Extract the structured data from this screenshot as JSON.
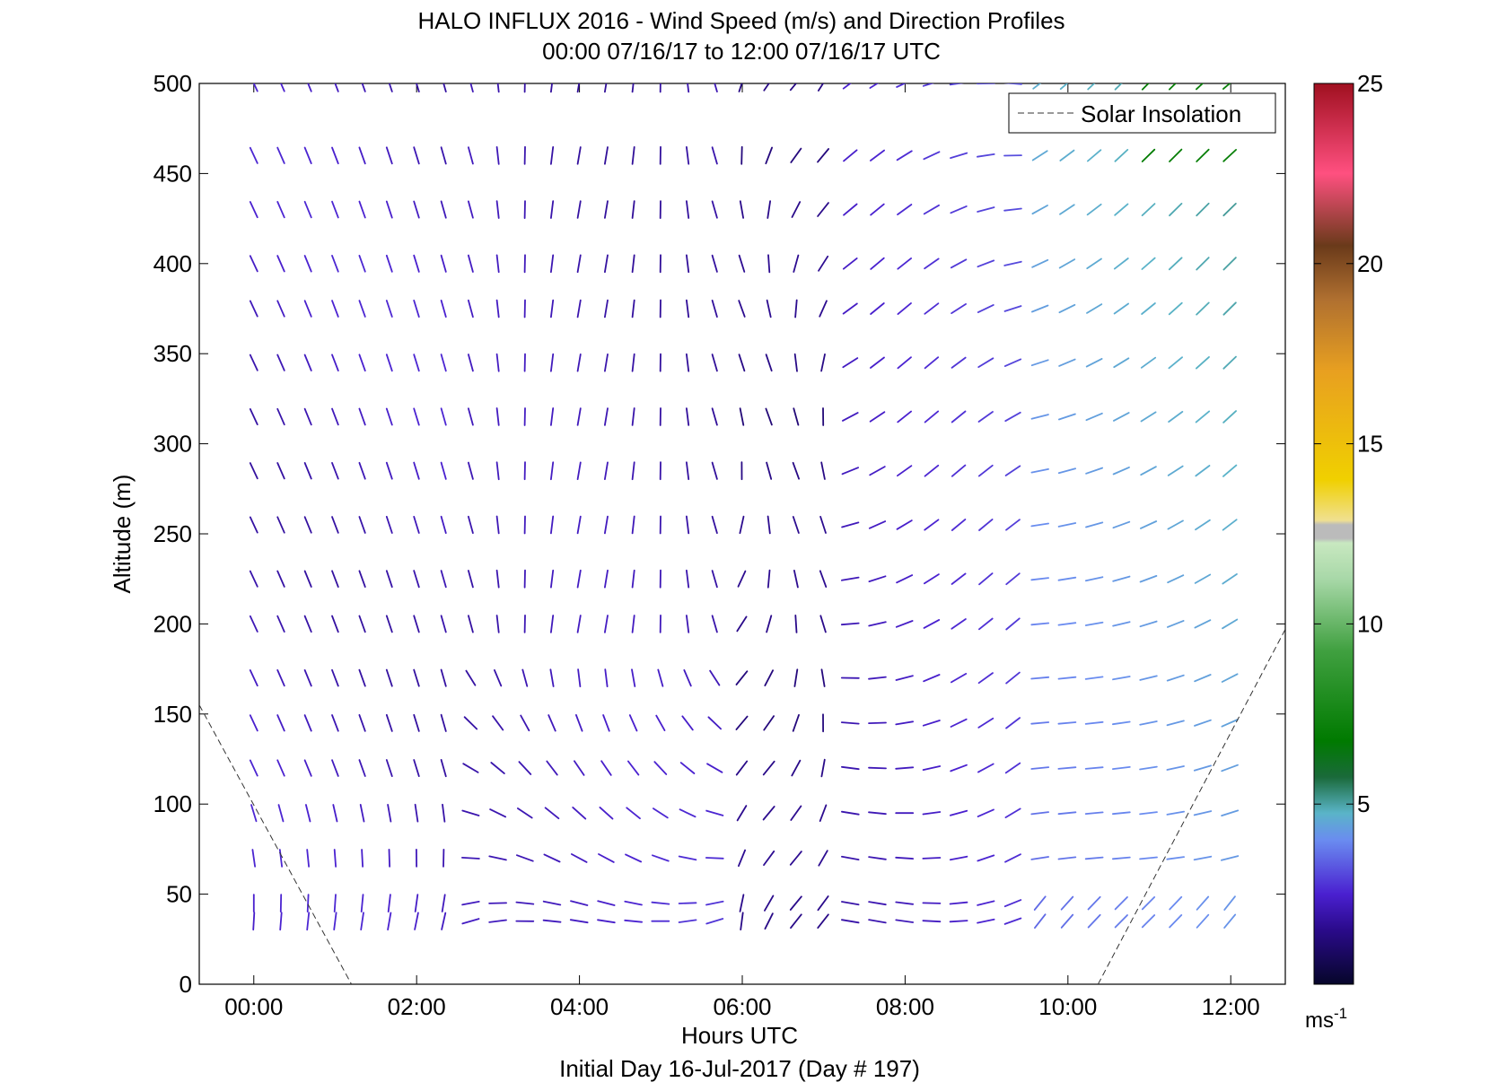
{
  "chart_data": {
    "type": "wind-barb-profile",
    "title": "HALO INFLUX 2016 - Wind Speed (m/s) and Direction Profiles",
    "subtitle": "00:00 07/16/17 to 12:00 07/16/17  UTC",
    "xlabel": "Hours UTC",
    "ylabel": "Altitude (m)",
    "footer": "Initial Day 16-Jul-2017 (Day # 197)",
    "xlim": [
      -0.67,
      12.67
    ],
    "ylim": [
      0,
      500
    ],
    "xticks": [
      0,
      2,
      4,
      6,
      8,
      10,
      12
    ],
    "xtick_labels": [
      "00:00",
      "02:00",
      "04:00",
      "06:00",
      "08:00",
      "10:00",
      "12:00"
    ],
    "yticks": [
      0,
      50,
      100,
      150,
      200,
      250,
      300,
      350,
      400,
      450,
      500
    ],
    "ytick_labels": [
      "0",
      "50",
      "100",
      "150",
      "200",
      "250",
      "300",
      "350",
      "400",
      "450",
      "500"
    ],
    "legend": {
      "entry": "Solar Insolation",
      "position": "top-right",
      "style": "dashed"
    },
    "colorbar": {
      "range": [
        0,
        25
      ],
      "ticks": [
        5,
        10,
        15,
        20,
        25
      ],
      "tick_labels": [
        "5",
        "10",
        "15",
        "20",
        "25"
      ],
      "unit_base": "ms",
      "unit_exponent": "-1"
    },
    "solar_insolation": {
      "morning": [
        [
          -0.67,
          155
        ],
        [
          1.2,
          0
        ]
      ],
      "evening": [
        [
          10.37,
          0
        ],
        [
          12.67,
          197
        ]
      ]
    },
    "time_start": 0,
    "time_step": 0.333,
    "altitudes": [
      500,
      460,
      430,
      400,
      375,
      345,
      315,
      285,
      255,
      225,
      200,
      170,
      145,
      120,
      95,
      70,
      45,
      35
    ],
    "profiles": [
      {
        "t": 0.0,
        "wind": [
          [
            500,
            335,
            2.5
          ],
          [
            460,
            340,
            2.6
          ],
          [
            430,
            350,
            2.6
          ],
          [
            400,
            335,
            2.6
          ],
          [
            375,
            350,
            2.6
          ],
          [
            345,
            350,
            2.6
          ],
          [
            315,
            350,
            2.6
          ],
          [
            285,
            355,
            2.6
          ],
          [
            255,
            355,
            2.5
          ],
          [
            225,
            355,
            2.5
          ],
          [
            200,
            355,
            2.5
          ],
          [
            170,
            355,
            2.5
          ],
          [
            145,
            0,
            2.5
          ],
          [
            120,
            0,
            2.5
          ],
          [
            95,
            10,
            2.5
          ],
          [
            70,
            15,
            2.5
          ],
          [
            45,
            20,
            2.5
          ],
          [
            35,
            30,
            2.5
          ]
        ]
      }
    ]
  }
}
